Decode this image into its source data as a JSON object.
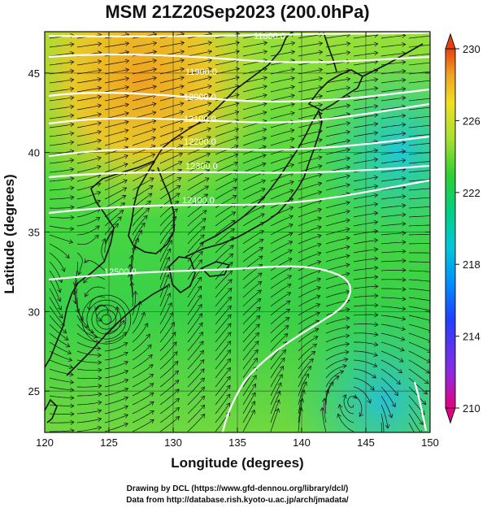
{
  "title": "MSM 21Z20Sep2023 (200.0hPa)",
  "xaxis": {
    "label": "Longitude (degrees)",
    "ticks": [
      120,
      125,
      130,
      135,
      140,
      145,
      150
    ],
    "range": [
      120,
      150
    ]
  },
  "yaxis": {
    "label": "Latitude  (degrees)",
    "ticks": [
      25,
      30,
      35,
      40,
      45
    ],
    "range": [
      22.4,
      47.6
    ]
  },
  "colorbar": {
    "ticks": [
      230,
      226,
      222,
      218,
      214,
      210
    ],
    "range": [
      210,
      230
    ],
    "colors": [
      "#e6007e",
      "#8b2be2",
      "#2040ff",
      "#0090ff",
      "#00c8d8",
      "#00d080",
      "#30d030",
      "#a8e030",
      "#f0e020",
      "#f0a020",
      "#e84010"
    ]
  },
  "contour_labels": [
    "11800.0",
    "11900.0",
    "12000.0",
    "12100.0",
    "12200.0",
    "12300.0",
    "12400.0",
    "12500.0"
  ],
  "credits": [
    "Drawing by DCL (https://www.gfd-dennou.org/library/dcl/)",
    "Data from http://database.rish.kyoto-u.ac.jp/arch/jmadata/"
  ],
  "map_features": {
    "vortex_center": {
      "lon": 124.8,
      "lat": 29.5
    }
  }
}
